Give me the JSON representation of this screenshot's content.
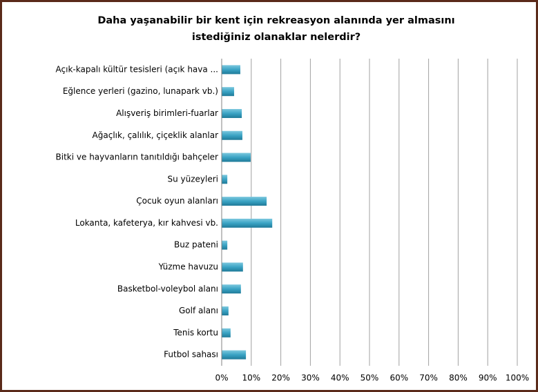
{
  "chart_data": {
    "type": "bar",
    "orientation": "horizontal",
    "title": [
      "Daha yaşanabilir bir kent için rekreasyon alanında yer almasını",
      "istediğiniz olanaklar nelerdir?"
    ],
    "categories": [
      "Açık-kapalı kültür tesisleri (açık hava ...",
      "Eğlence yerleri (gazino, lunapark vb.)",
      "Alışveriş birimleri-fuarlar",
      "Ağaçlık, çalılık, çiçeklik alanlar",
      "Bitki ve hayvanların tanıtıldığı bahçeler",
      "Su yüzeyleri",
      "Çocuk oyun alanları",
      "Lokanta, kafeterya, kır kahvesi vb.",
      "Buz pateni",
      "Yüzme havuzu",
      "Basketbol-voleybol alanı",
      "Golf alanı",
      "Tenis kortu",
      "Futbol sahası"
    ],
    "values": [
      6.3,
      4.2,
      6.8,
      7.0,
      9.8,
      1.9,
      15.2,
      17.1,
      1.9,
      7.2,
      6.5,
      2.3,
      3.0,
      8.2
    ],
    "color": "#3aa3c4",
    "xlim": [
      0,
      100
    ],
    "xticks": [
      {
        "value": 0,
        "label": "0%"
      },
      {
        "value": 10,
        "label": "10%"
      },
      {
        "value": 20,
        "label": "20%"
      },
      {
        "value": 30,
        "label": "30%"
      },
      {
        "value": 40,
        "label": "40%"
      },
      {
        "value": 50,
        "label": "50%"
      },
      {
        "value": 60,
        "label": "60%"
      },
      {
        "value": 70,
        "label": "70%"
      },
      {
        "value": 80,
        "label": "80%"
      },
      {
        "value": 90,
        "label": "90%"
      },
      {
        "value": 100,
        "label": "100%"
      }
    ],
    "grid": true
  }
}
